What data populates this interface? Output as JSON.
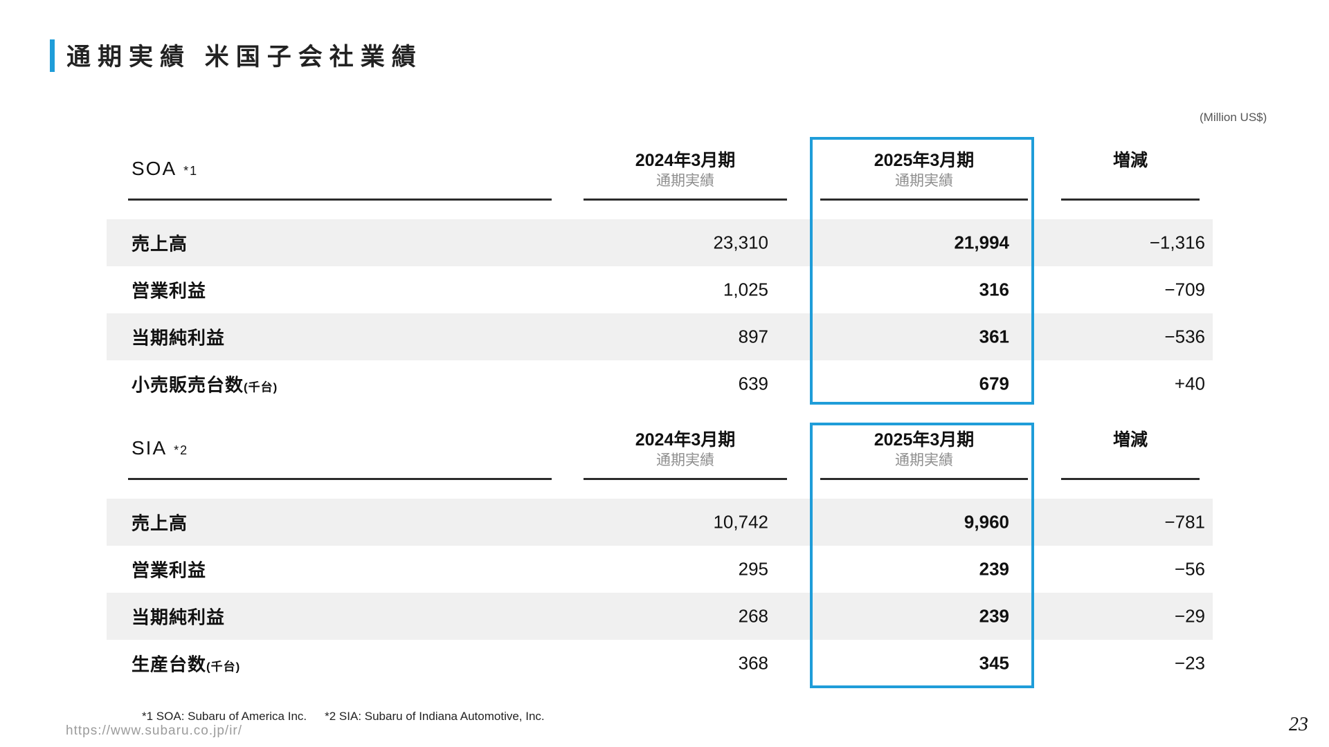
{
  "page": {
    "title": "通期実績 米国子会社業績",
    "unit_note": "(Million US$)",
    "footnotes": [
      "*1 SOA: Subaru of America Inc.",
      "*2 SIA: Subaru of Indiana Automotive, Inc."
    ],
    "url": "https://www.subaru.co.jp/ir/",
    "page_number": "23"
  },
  "columns": {
    "fy2024": "2024年3月期",
    "fy2025": "2025年3月期",
    "sub": "通期実績",
    "diff": "増減"
  },
  "tables": {
    "soa": {
      "label": "SOA",
      "note": "*1",
      "rows": [
        {
          "label": "売上高",
          "suffix": "",
          "v2024": "23,310",
          "v2025": "21,994",
          "diff": "−1,316"
        },
        {
          "label": "営業利益",
          "suffix": "",
          "v2024": "1,025",
          "v2025": "316",
          "diff": "−709"
        },
        {
          "label": "当期純利益",
          "suffix": "",
          "v2024": "897",
          "v2025": "361",
          "diff": "−536"
        },
        {
          "label": "小売販売台数",
          "suffix": "(千台)",
          "v2024": "639",
          "v2025": "679",
          "diff": "+40"
        }
      ]
    },
    "sia": {
      "label": "SIA",
      "note": "*2",
      "rows": [
        {
          "label": "売上高",
          "suffix": "",
          "v2024": "10,742",
          "v2025": "9,960",
          "diff": "−781"
        },
        {
          "label": "営業利益",
          "suffix": "",
          "v2024": "295",
          "v2025": "239",
          "diff": "−56"
        },
        {
          "label": "当期純利益",
          "suffix": "",
          "v2024": "268",
          "v2025": "239",
          "diff": "−29"
        },
        {
          "label": "生産台数",
          "suffix": "(千台)",
          "v2024": "368",
          "v2025": "345",
          "diff": "−23"
        }
      ]
    }
  },
  "colors": {
    "accent_blue": "#1f9dd9",
    "row_band_gray": "#f0f0f0",
    "rule_dark": "#2b2b2b",
    "header_sub_gray": "#8e8e8e"
  }
}
